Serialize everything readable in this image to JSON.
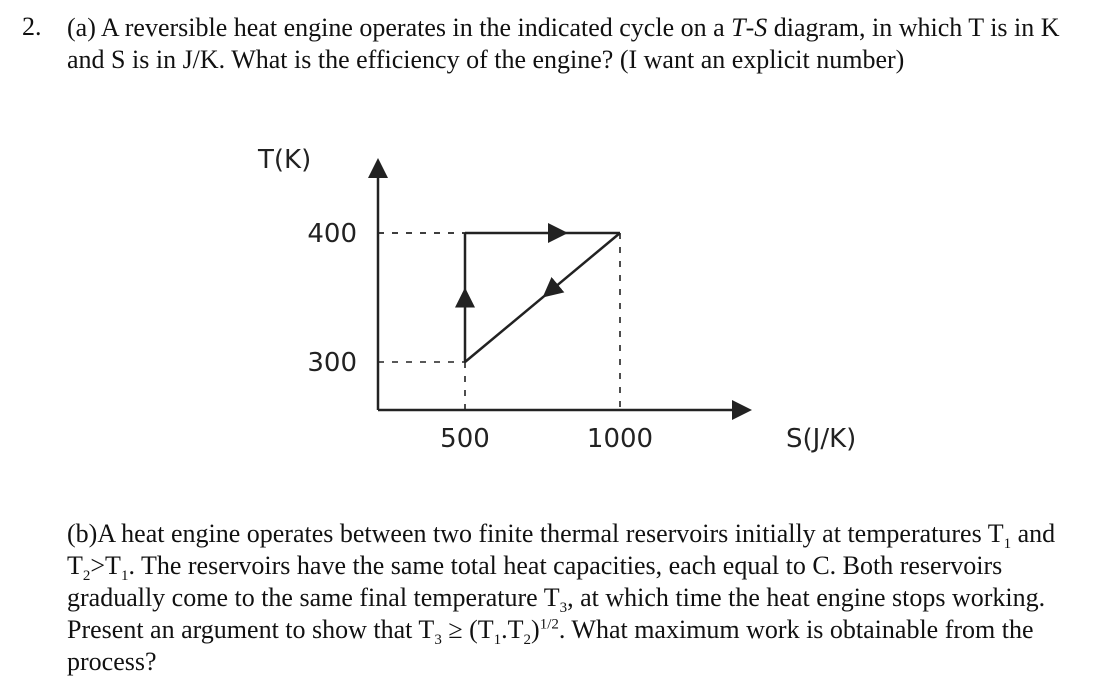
{
  "problem": {
    "number": "2.",
    "part_a": {
      "t1": "(a) A reversible heat engine operates in the indicated cycle on a ",
      "t_var": "T",
      "t_dash": "-",
      "s_var": "S",
      "t2": " diagram, in which T is in K and S is in J/K. What is the efficiency of the engine? (I want an explicit number)"
    },
    "part_b": {
      "t1": "(b)A heat engine operates between two finite thermal reservoirs initially at temperatures T",
      "s1": "1",
      "t2": " and T",
      "s2": "2",
      "t3": ">T",
      "s3": "1",
      "t4": ". The reservoirs have the same total heat capacities, each equal to C. Both reservoirs gradually come to the same final temperature T",
      "s4": "3",
      "t5": ", at which time the heat engine stops working. Present an argument to show that T",
      "s5": "3",
      "t6": " ≥ (T",
      "s6": "1",
      "t7": ".T",
      "s7": "2",
      "t8": ")",
      "sup": "1/2",
      "t9": ". What maximum work is obtainable from the process?"
    }
  },
  "chart_data": {
    "type": "line",
    "xlabel": "S(J/K)",
    "ylabel": "T(K)",
    "x_ticks": [
      500,
      1000
    ],
    "x_tick_labels": [
      "500",
      "1000"
    ],
    "y_ticks": [
      300,
      400
    ],
    "y_tick_labels": [
      "300",
      "400"
    ],
    "grid": false,
    "cycle": [
      {
        "from": [
          500,
          300
        ],
        "to": [
          500,
          400
        ],
        "direction": "up"
      },
      {
        "from": [
          500,
          400
        ],
        "to": [
          1000,
          400
        ],
        "direction": "right"
      },
      {
        "from": [
          1000,
          400
        ],
        "to": [
          500,
          300
        ],
        "direction": "down-left"
      }
    ]
  }
}
